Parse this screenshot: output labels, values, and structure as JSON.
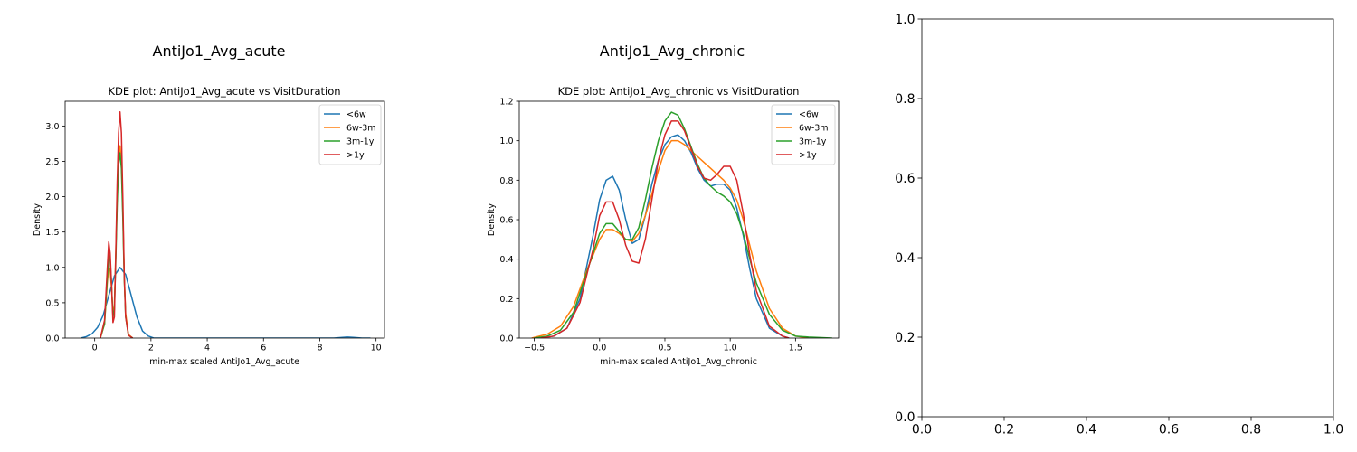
{
  "chart_data": [
    {
      "type": "line",
      "figure_title": "AntiJo1_Avg_acute",
      "title": "KDE plot:  AntiJo1_Avg_acute vs VisitDuration",
      "xlabel": "min-max scaled AntiJo1_Avg_acute",
      "ylabel": "Density",
      "xlim": [
        -1.05,
        10.3
      ],
      "ylim": [
        0,
        3.35
      ],
      "xticks": [
        0,
        2,
        4,
        6,
        8,
        10
      ],
      "xtick_labels": [
        "0",
        "2",
        "4",
        "6",
        "8",
        "10"
      ],
      "yticks": [
        0.0,
        0.5,
        1.0,
        1.5,
        2.0,
        2.5,
        3.0
      ],
      "ytick_labels": [
        "0.0",
        "0.5",
        "1.0",
        "1.5",
        "2.0",
        "2.5",
        "3.0"
      ],
      "legend": "top-right",
      "grid": false,
      "series": [
        {
          "name": "<6w",
          "color": "#1f77b4",
          "x": [
            -0.5,
            -0.3,
            -0.1,
            0.1,
            0.3,
            0.5,
            0.7,
            0.9,
            1.1,
            1.3,
            1.5,
            1.7,
            1.9,
            2.1,
            3,
            5,
            7,
            8.5,
            8.8,
            9.0,
            9.2,
            9.5,
            9.8
          ],
          "y": [
            0.0,
            0.02,
            0.06,
            0.15,
            0.32,
            0.6,
            0.88,
            1.0,
            0.9,
            0.6,
            0.3,
            0.1,
            0.03,
            0.0,
            0.0,
            0.0,
            0.0,
            0.0,
            0.01,
            0.015,
            0.01,
            0.0,
            0.0
          ]
        },
        {
          "name": "6w-3m",
          "color": "#ff7f0e",
          "x": [
            0.2,
            0.35,
            0.45,
            0.5,
            0.55,
            0.6,
            0.65,
            0.7,
            0.75,
            0.8,
            0.85,
            0.9,
            0.95,
            1.0,
            1.05,
            1.1,
            1.2,
            1.35
          ],
          "y": [
            0.0,
            0.2,
            0.8,
            1.0,
            0.95,
            0.7,
            0.35,
            0.45,
            1.2,
            2.0,
            2.55,
            2.72,
            2.5,
            1.8,
            0.9,
            0.35,
            0.05,
            0.0
          ]
        },
        {
          "name": "3m-1y",
          "color": "#2ca02c",
          "x": [
            0.2,
            0.35,
            0.45,
            0.5,
            0.55,
            0.6,
            0.65,
            0.7,
            0.75,
            0.8,
            0.85,
            0.9,
            0.95,
            1.0,
            1.05,
            1.1,
            1.2,
            1.35
          ],
          "y": [
            0.0,
            0.2,
            0.85,
            1.2,
            1.1,
            0.75,
            0.3,
            0.4,
            1.1,
            1.9,
            2.45,
            2.62,
            2.4,
            1.7,
            0.85,
            0.3,
            0.04,
            0.0
          ]
        },
        {
          "name": ">1y",
          "color": "#d62728",
          "x": [
            0.2,
            0.35,
            0.45,
            0.5,
            0.55,
            0.6,
            0.65,
            0.7,
            0.75,
            0.8,
            0.85,
            0.9,
            0.95,
            1.0,
            1.05,
            1.1,
            1.2,
            1.35
          ],
          "y": [
            0.0,
            0.25,
            1.0,
            1.36,
            1.2,
            0.75,
            0.22,
            0.3,
            1.2,
            2.2,
            2.9,
            3.2,
            2.9,
            2.0,
            0.9,
            0.3,
            0.04,
            0.0
          ]
        }
      ]
    },
    {
      "type": "line",
      "figure_title": "AntiJo1_Avg_chronic",
      "title": "KDE plot:  AntiJo1_Avg_chronic vs VisitDuration",
      "xlabel": "min-max scaled AntiJo1_Avg_chronic",
      "ylabel": "Density",
      "xlim": [
        -0.615,
        1.83
      ],
      "ylim": [
        0,
        1.2
      ],
      "xticks": [
        -0.5,
        0.0,
        0.5,
        1.0,
        1.5
      ],
      "xtick_labels": [
        "−0.5",
        "0.0",
        "0.5",
        "1.0",
        "1.5"
      ],
      "yticks": [
        0.0,
        0.2,
        0.4,
        0.6,
        0.8,
        1.0,
        1.2
      ],
      "ytick_labels": [
        "0.0",
        "0.2",
        "0.4",
        "0.6",
        "0.8",
        "1.0",
        "1.2"
      ],
      "legend": "top-right",
      "grid": false,
      "series": [
        {
          "name": "<6w",
          "color": "#1f77b4",
          "x": [
            -0.45,
            -0.35,
            -0.25,
            -0.15,
            -0.05,
            0.0,
            0.05,
            0.1,
            0.15,
            0.2,
            0.25,
            0.3,
            0.35,
            0.4,
            0.45,
            0.5,
            0.55,
            0.6,
            0.65,
            0.7,
            0.75,
            0.8,
            0.85,
            0.9,
            0.95,
            1.0,
            1.05,
            1.1,
            1.15,
            1.2,
            1.3,
            1.4,
            1.45
          ],
          "y": [
            0.0,
            0.01,
            0.05,
            0.2,
            0.52,
            0.7,
            0.8,
            0.82,
            0.75,
            0.6,
            0.48,
            0.5,
            0.62,
            0.78,
            0.9,
            0.98,
            1.02,
            1.03,
            1.0,
            0.94,
            0.86,
            0.8,
            0.77,
            0.78,
            0.78,
            0.75,
            0.66,
            0.52,
            0.35,
            0.2,
            0.05,
            0.01,
            0.0
          ]
        },
        {
          "name": "6w-3m",
          "color": "#ff7f0e",
          "x": [
            -0.52,
            -0.4,
            -0.3,
            -0.2,
            -0.1,
            0.0,
            0.05,
            0.1,
            0.15,
            0.2,
            0.25,
            0.3,
            0.35,
            0.4,
            0.45,
            0.5,
            0.55,
            0.6,
            0.65,
            0.7,
            0.75,
            0.8,
            0.85,
            0.9,
            0.95,
            1.0,
            1.05,
            1.1,
            1.15,
            1.2,
            1.3,
            1.4,
            1.5,
            1.6
          ],
          "y": [
            0.0,
            0.02,
            0.06,
            0.16,
            0.34,
            0.5,
            0.55,
            0.55,
            0.53,
            0.5,
            0.49,
            0.53,
            0.62,
            0.73,
            0.85,
            0.95,
            1.0,
            1.0,
            0.98,
            0.95,
            0.92,
            0.89,
            0.86,
            0.83,
            0.8,
            0.76,
            0.7,
            0.6,
            0.47,
            0.34,
            0.15,
            0.05,
            0.01,
            0.0
          ]
        },
        {
          "name": "3m-1y",
          "color": "#2ca02c",
          "x": [
            -0.5,
            -0.4,
            -0.3,
            -0.2,
            -0.1,
            0.0,
            0.05,
            0.1,
            0.15,
            0.2,
            0.25,
            0.3,
            0.35,
            0.4,
            0.45,
            0.5,
            0.55,
            0.6,
            0.65,
            0.7,
            0.75,
            0.8,
            0.85,
            0.9,
            0.95,
            1.0,
            1.05,
            1.1,
            1.15,
            1.2,
            1.3,
            1.4,
            1.5,
            1.6,
            1.78
          ],
          "y": [
            0.0,
            0.01,
            0.04,
            0.13,
            0.33,
            0.53,
            0.58,
            0.58,
            0.54,
            0.5,
            0.5,
            0.56,
            0.7,
            0.86,
            1.0,
            1.1,
            1.145,
            1.13,
            1.06,
            0.97,
            0.88,
            0.81,
            0.77,
            0.74,
            0.72,
            0.69,
            0.63,
            0.53,
            0.4,
            0.28,
            0.12,
            0.04,
            0.01,
            0.005,
            0.0
          ]
        },
        {
          "name": ">1y",
          "color": "#d62728",
          "x": [
            -0.45,
            -0.35,
            -0.25,
            -0.15,
            -0.05,
            0.0,
            0.05,
            0.1,
            0.15,
            0.2,
            0.25,
            0.3,
            0.35,
            0.4,
            0.45,
            0.5,
            0.55,
            0.6,
            0.65,
            0.7,
            0.75,
            0.8,
            0.85,
            0.9,
            0.95,
            1.0,
            1.05,
            1.1,
            1.15,
            1.2,
            1.3,
            1.4,
            1.45
          ],
          "y": [
            0.0,
            0.01,
            0.05,
            0.18,
            0.45,
            0.62,
            0.69,
            0.69,
            0.6,
            0.47,
            0.39,
            0.38,
            0.5,
            0.7,
            0.9,
            1.03,
            1.1,
            1.1,
            1.05,
            0.96,
            0.87,
            0.81,
            0.8,
            0.83,
            0.87,
            0.87,
            0.8,
            0.63,
            0.42,
            0.24,
            0.06,
            0.01,
            0.0
          ]
        }
      ]
    },
    {
      "type": "line",
      "title": "",
      "xlabel": "",
      "ylabel": "",
      "xlim": [
        0.0,
        1.0
      ],
      "ylim": [
        0.0,
        1.0
      ],
      "xticks": [
        0.0,
        0.2,
        0.4,
        0.6,
        0.8,
        1.0
      ],
      "xtick_labels": [
        "0.0",
        "0.2",
        "0.4",
        "0.6",
        "0.8",
        "1.0"
      ],
      "yticks": [
        0.0,
        0.2,
        0.4,
        0.6,
        0.8,
        1.0
      ],
      "ytick_labels": [
        "0.0",
        "0.2",
        "0.4",
        "0.6",
        "0.8",
        "1.0"
      ],
      "grid": false,
      "series": []
    }
  ]
}
